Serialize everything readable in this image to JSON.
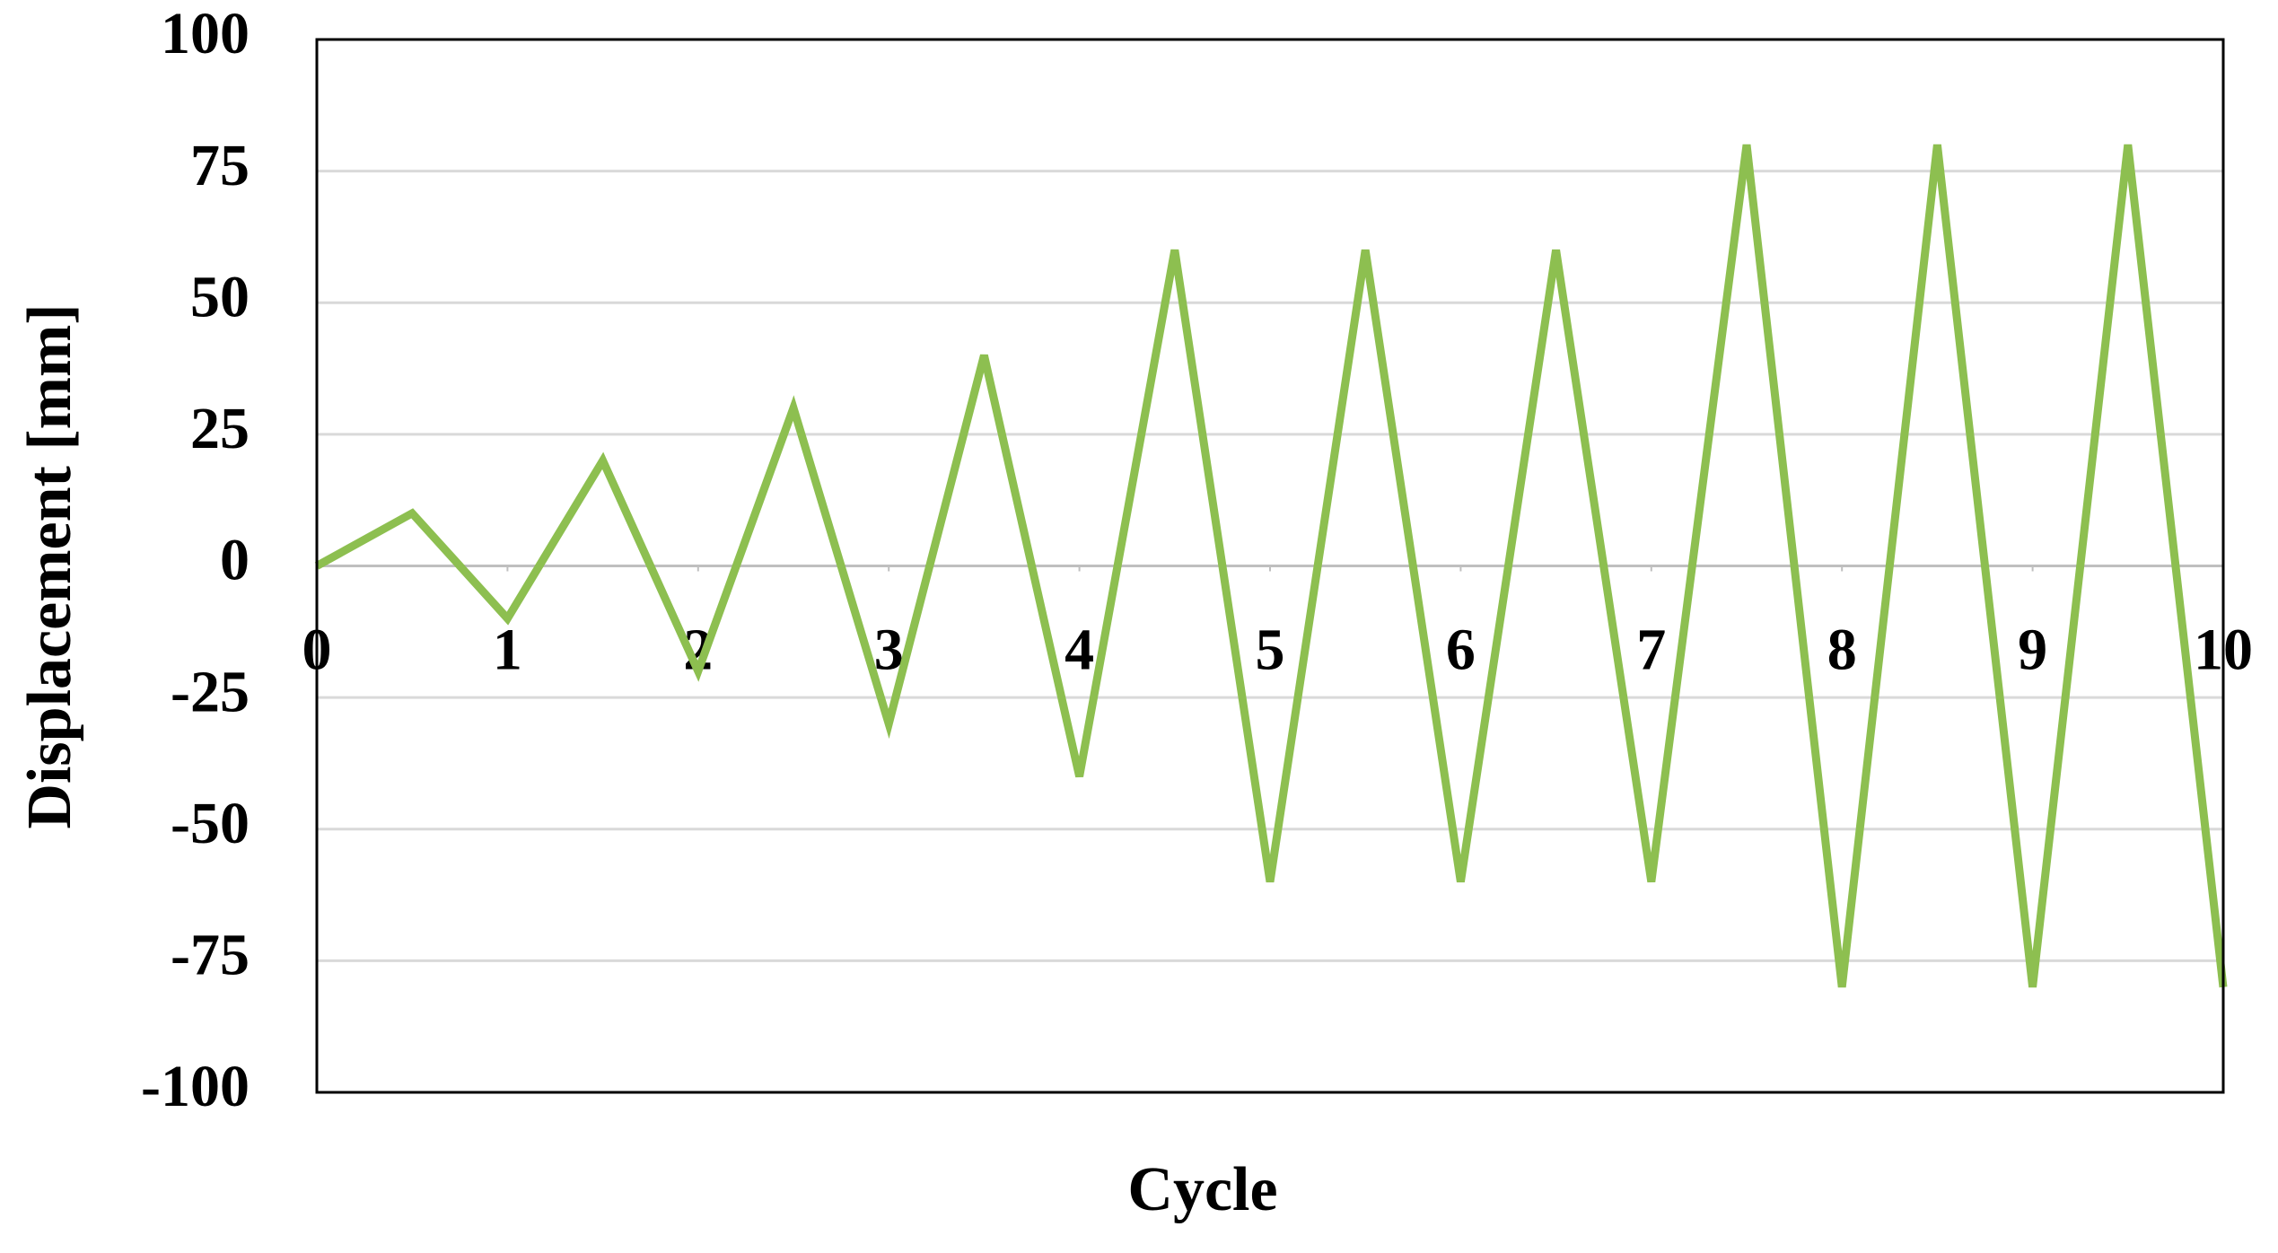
{
  "chart_data": {
    "type": "line",
    "x_label": "Cycle",
    "y_label": "Displacement [mm]",
    "x": [
      0,
      0.5,
      1,
      1.5,
      2,
      2.5,
      3,
      3.5,
      4,
      4.5,
      5,
      5.5,
      6,
      6.5,
      7,
      7.5,
      8,
      8.5,
      9,
      9.5,
      10
    ],
    "series": [
      {
        "color": "#8dbf50",
        "values": [
          0,
          10,
          -10,
          20,
          -20,
          30,
          -30,
          40,
          -40,
          60,
          -60,
          60,
          -60,
          60,
          -60,
          80,
          -80,
          80,
          -80,
          80,
          -80
        ]
      }
    ],
    "xlim": [
      0,
      10
    ],
    "xticks": [
      0,
      1,
      2,
      3,
      4,
      5,
      6,
      7,
      8,
      9,
      10
    ],
    "ylim": [
      -100,
      100
    ],
    "yticks": [
      -100,
      -75,
      -50,
      -25,
      0,
      25,
      50,
      75,
      100
    ],
    "grid": true
  }
}
